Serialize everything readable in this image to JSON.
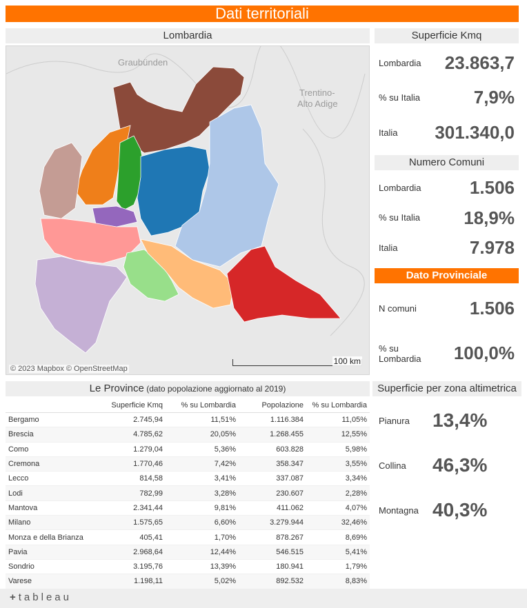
{
  "banner": {
    "title": "Dati territoriali"
  },
  "map": {
    "title": "Lombardia",
    "labels": {
      "north": "Graubünden",
      "east_1": "Trentino-",
      "east_2": "Alto Adige"
    },
    "attribution": "© 2023 Mapbox  © OpenStreetMap",
    "scale": "100 km",
    "colors": {
      "sondrio": "#8b4a3a",
      "como": "#ef7f1a",
      "lecco": "#2ca02c",
      "varese": "#c49c94",
      "bergamo": "#1f77b4",
      "brescia": "#aec7e8",
      "monza": "#9467bd",
      "milano": "#ff9896",
      "lodi": "#98df8a",
      "cremona": "#ffbb78",
      "mantova": "#d62728",
      "pavia": "#c5b0d5"
    }
  },
  "superficie": {
    "title": "Superficie Kmq",
    "rows": [
      {
        "label": "Lombardia",
        "value": "23.863,7"
      },
      {
        "label": "% su Italia",
        "value": "7,9%"
      },
      {
        "label": "Italia",
        "value": "301.340,0"
      }
    ]
  },
  "comuni": {
    "title": "Numero Comuni",
    "rows": [
      {
        "label": "Lombardia",
        "value": "1.506"
      },
      {
        "label": "% su Italia",
        "value": "18,9%"
      },
      {
        "label": "Italia",
        "value": "7.978"
      }
    ]
  },
  "provinciale": {
    "title": "Dato Provinciale",
    "rows": [
      {
        "label": "N comuni",
        "value": "1.506"
      },
      {
        "label_1": "% su",
        "label_2": "Lombardia",
        "value": "100,0%"
      }
    ]
  },
  "altimetrica": {
    "title": "Superficie per zona altimetrica",
    "rows": [
      {
        "label": "Pianura",
        "value": "13,4%"
      },
      {
        "label": "Collina",
        "value": "46,3%"
      },
      {
        "label": "Montagna",
        "value": "40,3%"
      }
    ]
  },
  "province": {
    "title": "Le Province",
    "subtitle": " (dato popolazione aggiornato al 2019)",
    "columns": [
      "",
      "Superficie Kmq",
      "% su Lombardia",
      "Popolazione",
      "% su Lombardia"
    ],
    "rows": [
      [
        "Bergamo",
        "2.745,94",
        "11,51%",
        "1.116.384",
        "11,05%"
      ],
      [
        "Brescia",
        "4.785,62",
        "20,05%",
        "1.268.455",
        "12,55%"
      ],
      [
        "Como",
        "1.279,04",
        "5,36%",
        "603.828",
        "5,98%"
      ],
      [
        "Cremona",
        "1.770,46",
        "7,42%",
        "358.347",
        "3,55%"
      ],
      [
        "Lecco",
        "814,58",
        "3,41%",
        "337.087",
        "3,34%"
      ],
      [
        "Lodi",
        "782,99",
        "3,28%",
        "230.607",
        "2,28%"
      ],
      [
        "Mantova",
        "2.341,44",
        "9,81%",
        "411.062",
        "4,07%"
      ],
      [
        "Milano",
        "1.575,65",
        "6,60%",
        "3.279.944",
        "32,46%"
      ],
      [
        "Monza e della Brianza",
        "405,41",
        "1,70%",
        "878.267",
        "8,69%"
      ],
      [
        "Pavia",
        "2.968,64",
        "12,44%",
        "546.515",
        "5,41%"
      ],
      [
        "Sondrio",
        "3.195,76",
        "13,39%",
        "180.941",
        "1,79%"
      ],
      [
        "Varese",
        "1.198,11",
        "5,02%",
        "892.532",
        "8,83%"
      ]
    ]
  },
  "footer": {
    "logo_mark": "+",
    "logo": "tableau"
  }
}
